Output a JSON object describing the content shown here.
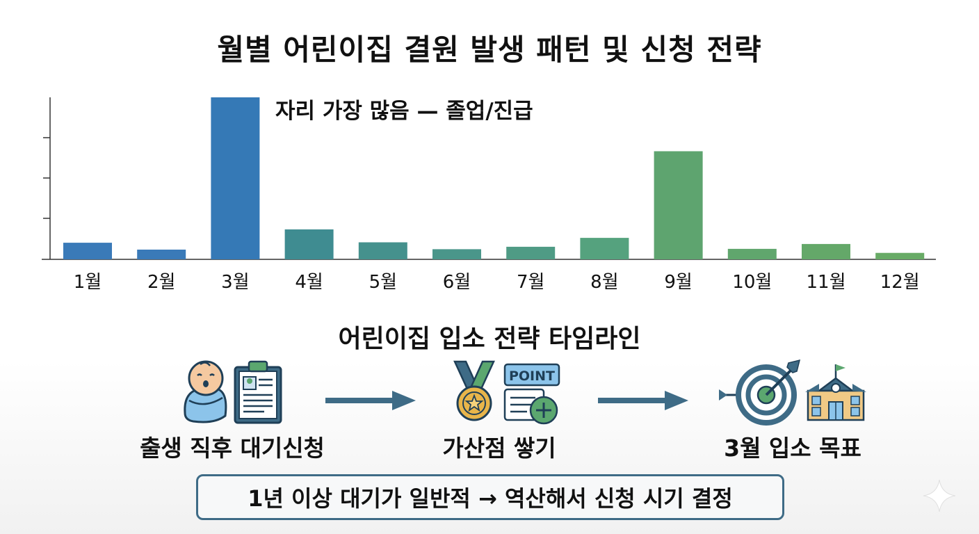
{
  "title": "월별 어린이집 결원 발생 패턴 및 신청 전략",
  "chart_data": {
    "type": "bar",
    "categories": [
      "1월",
      "2월",
      "3월",
      "4월",
      "5월",
      "6월",
      "7월",
      "8월",
      "9월",
      "10월",
      "11월",
      "12월"
    ],
    "values": [
      4.1,
      2.4,
      40,
      7.4,
      4.2,
      2.5,
      3.1,
      5.3,
      26.7,
      2.6,
      3.8,
      1.6
    ],
    "colors": [
      "#3a7ab8",
      "#3a7ab8",
      "#3579b6",
      "#3f8c91",
      "#45918d",
      "#4a968a",
      "#4f9b85",
      "#55a27e",
      "#5ea46f",
      "#60a66d",
      "#64a869",
      "#68ab66"
    ],
    "annotation": "자리 가장 많음 — 졸업/진급",
    "ylim": [
      0,
      40
    ],
    "title": "",
    "xlabel": "",
    "ylabel": ""
  },
  "timeline": {
    "title": "어린이집 입소 전략 타임라인",
    "steps": [
      {
        "label": "출생 직후 대기신청",
        "icons": [
          "baby-icon",
          "clipboard-icon"
        ]
      },
      {
        "label": "가산점 쌓기",
        "icons": [
          "medal-icon",
          "point-card-icon"
        ],
        "badge": "POINT"
      },
      {
        "label": "3월 입소 목표",
        "icons": [
          "target-icon",
          "school-icon"
        ]
      }
    ]
  },
  "note": "1년 이상 대기가 일반적 → 역산해서 신청 시기 결정",
  "colors": {
    "arrow": "#3e6b86",
    "border": "#3e6b86"
  }
}
